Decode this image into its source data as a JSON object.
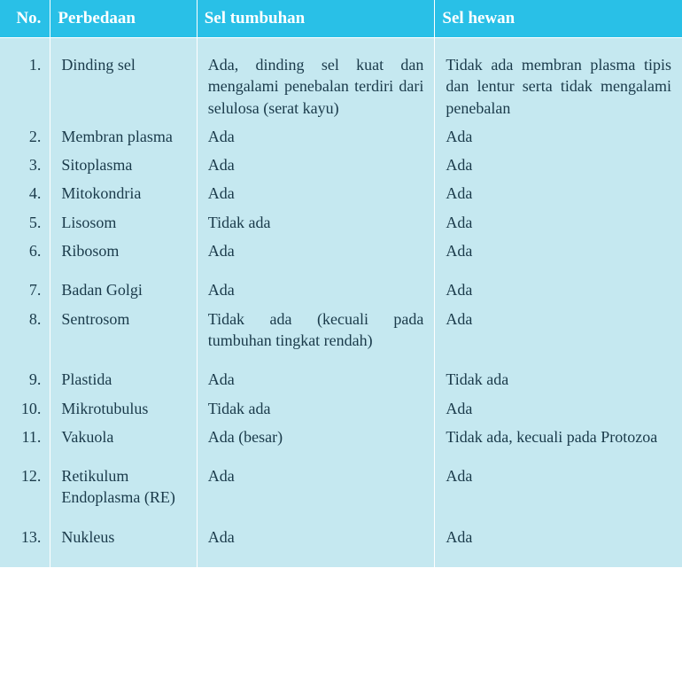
{
  "table": {
    "header_bg": "#29c0e7",
    "body_bg": "#c5e8f0",
    "header_color": "#ffffff",
    "text_color": "#1a3a4a",
    "columns": {
      "no": "No.",
      "diff": "Perbedaan",
      "plant": "Sel tumbuhan",
      "animal": "Sel hewan"
    },
    "rows": [
      {
        "no": "1.",
        "diff": "Dinding sel",
        "plant": "Ada, dinding sel kuat dan mengalami pene­balan terdiri dari selulosa (serat kayu)",
        "animal": "Tidak ada membran plasma tipis dan lentur serta tidak mengalami penebalan",
        "gap": false
      },
      {
        "no": "2.",
        "diff": "Membran plasma",
        "plant": "Ada",
        "animal": "Ada",
        "gap": false
      },
      {
        "no": "3.",
        "diff": "Sitoplasma",
        "plant": "Ada",
        "animal": "Ada",
        "gap": false
      },
      {
        "no": "4.",
        "diff": "Mitokondria",
        "plant": "Ada",
        "animal": "Ada",
        "gap": false
      },
      {
        "no": "5.",
        "diff": "Lisosom",
        "plant": "Tidak ada",
        "animal": "Ada",
        "gap": false
      },
      {
        "no": "6.",
        "diff": "Ribosom",
        "plant": "Ada",
        "animal": "Ada",
        "gap": false
      },
      {
        "no": "7.",
        "diff": "Badan Golgi",
        "plant": "Ada",
        "animal": "Ada",
        "gap": true
      },
      {
        "no": "8.",
        "diff": "Sentrosom",
        "plant": "Tidak ada (kecuali pada tumbuhan ting­kat rendah)",
        "animal": "Ada",
        "gap": false
      },
      {
        "no": "9.",
        "diff": "Plastida",
        "plant": "Ada",
        "animal": "Tidak ada",
        "gap": true
      },
      {
        "no": "10.",
        "diff": "Mikrotubulus",
        "plant": "Tidak ada",
        "animal": "Ada",
        "gap": false
      },
      {
        "no": "11.",
        "diff": "Vakuola",
        "plant": "Ada (besar)",
        "animal": "Tidak ada, kecuali pada Protozoa",
        "gap": false
      },
      {
        "no": "12.",
        "diff": "Retikulum Endoplasma (RE)",
        "plant": "Ada",
        "animal": "Ada",
        "gap": true
      },
      {
        "no": "13.",
        "diff": "Nukleus",
        "plant": "Ada",
        "animal": "Ada",
        "gap": true
      }
    ]
  }
}
